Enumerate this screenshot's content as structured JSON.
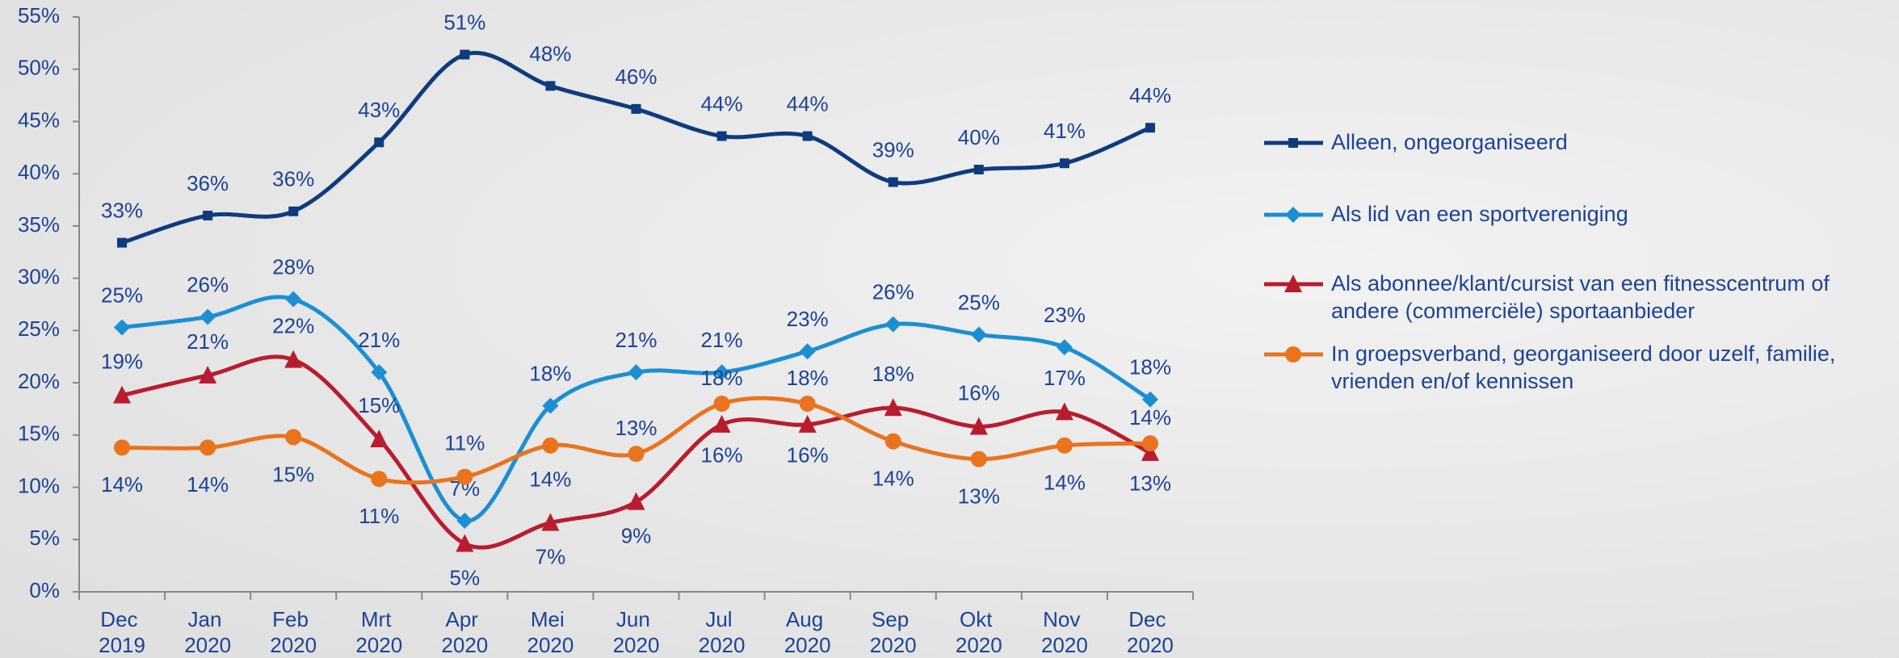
{
  "chart_data": {
    "type": "line",
    "categories": [
      "Dec 2019",
      "Jan 2020",
      "Feb 2020",
      "Mrt 2020",
      "Apr 2020",
      "Mei 2020",
      "Jun 2020",
      "Jul 2020",
      "Aug 2020",
      "Sep 2020",
      "Okt 2020",
      "Nov 2020",
      "Dec 2020"
    ],
    "series": [
      {
        "name": "Alleen, ongeorganiseerd",
        "color": "#0e3b7e",
        "marker": "square",
        "values": [
          33.4,
          36,
          36.4,
          43,
          51.4,
          48.4,
          46.2,
          43.6,
          43.6,
          39.2,
          40.4,
          41,
          44.4
        ],
        "value_labels": [
          "33%",
          "36%",
          "36%",
          "43%",
          "51%",
          "48%",
          "46%",
          "44%",
          "44%",
          "39%",
          "40%",
          "41%",
          "44%"
        ]
      },
      {
        "name": "Als lid van een sportvereniging",
        "color": "#1b8fd2",
        "marker": "diamond",
        "values": [
          25.3,
          26.3,
          28,
          21,
          6.8,
          17.8,
          21,
          21,
          23,
          25.6,
          24.6,
          23.4,
          18.4
        ],
        "value_labels": [
          "25%",
          "26%",
          "28%",
          "21%",
          "7%",
          "18%",
          "21%",
          "21%",
          "23%",
          "26%",
          "25%",
          "23%",
          "18%"
        ]
      },
      {
        "name": "Als abonnee/klant/cursist van een fitnesscentrum of andere (commerciële) sportaanbieder",
        "color": "#b91c2e",
        "marker": "triangle",
        "values": [
          18.8,
          20.7,
          22.2,
          14.6,
          4.6,
          6.6,
          8.6,
          16,
          16,
          17.6,
          15.8,
          17.2,
          13.3
        ],
        "value_labels": [
          "19%",
          "21%",
          "22%",
          "15%",
          "5%",
          "7%",
          "9%",
          "16%",
          "16%",
          "18%",
          "16%",
          "17%",
          "13%"
        ]
      },
      {
        "name": "In groepsverband, georganiseerd door uzelf, familie, vrienden en/of kennissen",
        "color": "#ea731e",
        "marker": "circle",
        "values": [
          13.8,
          13.8,
          14.8,
          10.8,
          11,
          14,
          13.2,
          18,
          18,
          14.4,
          12.7,
          14,
          14.2
        ],
        "value_labels": [
          "14%",
          "14%",
          "15%",
          "11%",
          "11%",
          "14%",
          "13%",
          "18%",
          "18%",
          "14%",
          "13%",
          "14%",
          "14%"
        ]
      }
    ],
    "ylim": [
      0,
      55
    ],
    "yticks": [
      {
        "value": 0,
        "label": "0%"
      },
      {
        "value": 5,
        "label": "5%"
      },
      {
        "value": 10,
        "label": "10%"
      },
      {
        "value": 15,
        "label": "15%"
      },
      {
        "value": 20,
        "label": "20%"
      },
      {
        "value": 25,
        "label": "25%"
      },
      {
        "value": 30,
        "label": "30%"
      },
      {
        "value": 35,
        "label": "35%"
      },
      {
        "value": 40,
        "label": "40%"
      },
      {
        "value": 45,
        "label": "45%"
      },
      {
        "value": 50,
        "label": "50%"
      },
      {
        "value": 55,
        "label": "55%"
      }
    ],
    "grid": false
  }
}
